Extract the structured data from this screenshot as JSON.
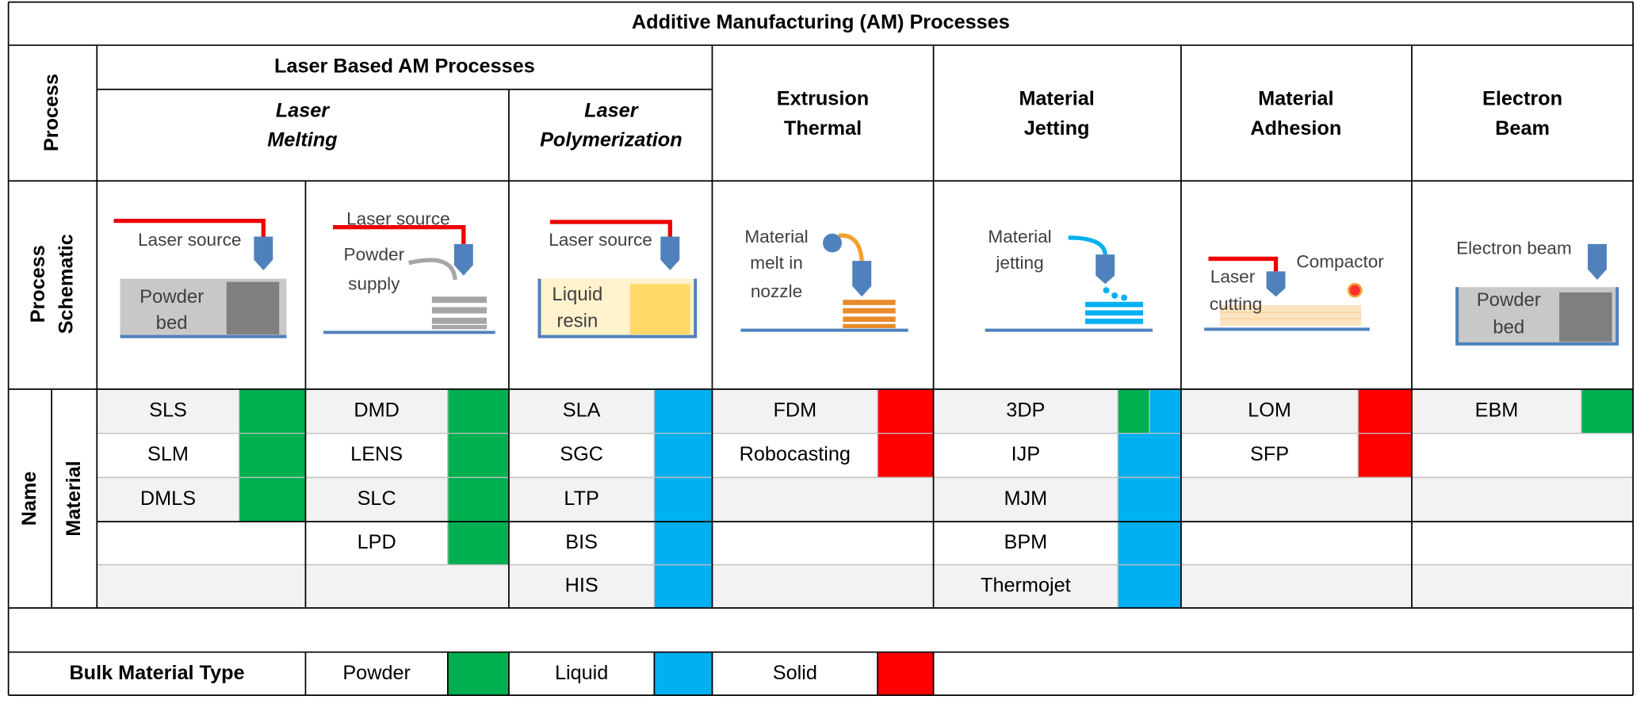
{
  "title": "Additive Manufacturing (AM) Processes",
  "row_headers": {
    "process": "Process",
    "schematic": [
      "Process",
      "Schematic"
    ],
    "name": "Name",
    "material": "Material"
  },
  "laser_based": {
    "title": "Laser Based AM Processes",
    "subgroups": [
      {
        "lines": [
          "Laser",
          "Melting"
        ]
      },
      {
        "lines": [
          "Laser",
          "Polymerization"
        ]
      }
    ]
  },
  "other_headers": [
    [
      "Extrusion",
      "Thermal"
    ],
    [
      "Material",
      "Jetting"
    ],
    [
      "Material",
      "Adhesion"
    ],
    [
      "Electron",
      "Beam"
    ]
  ],
  "columns": [
    {
      "schematic": [
        [
          "Laser source"
        ],
        [
          "Powder",
          "bed"
        ]
      ],
      "entries": [
        {
          "name": "SLS",
          "colors": [
            "#00b050"
          ]
        },
        {
          "name": "SLM",
          "colors": [
            "#00b050"
          ]
        },
        {
          "name": "DMLS",
          "colors": [
            "#00b050"
          ]
        }
      ]
    },
    {
      "schematic": [
        [
          "Laser source"
        ],
        [
          "Powder",
          "supply"
        ]
      ],
      "entries": [
        {
          "name": "DMD",
          "colors": [
            "#00b050"
          ]
        },
        {
          "name": "LENS",
          "colors": [
            "#00b050"
          ]
        },
        {
          "name": "SLC",
          "colors": [
            "#00b050"
          ]
        },
        {
          "name": "LPD",
          "colors": [
            "#00b050"
          ]
        }
      ]
    },
    {
      "schematic": [
        [
          "Laser source"
        ],
        [
          "Liquid",
          "resin"
        ]
      ],
      "entries": [
        {
          "name": "SLA",
          "colors": [
            "#00b0f0"
          ]
        },
        {
          "name": "SGC",
          "colors": [
            "#00b0f0"
          ]
        },
        {
          "name": "LTP",
          "colors": [
            "#00b0f0"
          ]
        },
        {
          "name": "BIS",
          "colors": [
            "#00b0f0"
          ]
        },
        {
          "name": "HIS",
          "colors": [
            "#00b0f0"
          ]
        }
      ]
    },
    {
      "schematic": [
        [
          "Material",
          "melt in",
          "nozzle"
        ]
      ],
      "entries": [
        {
          "name": "FDM",
          "colors": [
            "#ff0000"
          ]
        },
        {
          "name": "Robocasting",
          "colors": [
            "#ff0000"
          ]
        }
      ]
    },
    {
      "schematic": [
        [
          "Material",
          "jetting"
        ]
      ],
      "entries": [
        {
          "name": "3DP",
          "colors": [
            "#00b050",
            "#00b0f0"
          ]
        },
        {
          "name": "IJP",
          "colors": [
            "#00b0f0"
          ]
        },
        {
          "name": "MJM",
          "colors": [
            "#00b0f0"
          ]
        },
        {
          "name": "BPM",
          "colors": [
            "#00b0f0"
          ]
        },
        {
          "name": "Thermojet",
          "colors": [
            "#00b0f0"
          ]
        }
      ]
    },
    {
      "schematic": [
        [
          "Laser",
          "cutting"
        ],
        [
          "Compactor"
        ]
      ],
      "entries": [
        {
          "name": "LOM",
          "colors": [
            "#ff0000"
          ]
        },
        {
          "name": "SFP",
          "colors": [
            "#ff0000"
          ]
        }
      ]
    },
    {
      "schematic": [
        [
          "Electron beam"
        ],
        [
          "Powder",
          "bed"
        ]
      ],
      "entries": [
        {
          "name": "EBM",
          "colors": [
            "#00b050"
          ]
        }
      ]
    }
  ],
  "legend": {
    "title": "Bulk Material Type",
    "items": [
      {
        "label": "Powder",
        "color": "#00b050"
      },
      {
        "label": "Liquid",
        "color": "#00b0f0"
      },
      {
        "label": "Solid",
        "color": "#ff0000"
      }
    ]
  }
}
